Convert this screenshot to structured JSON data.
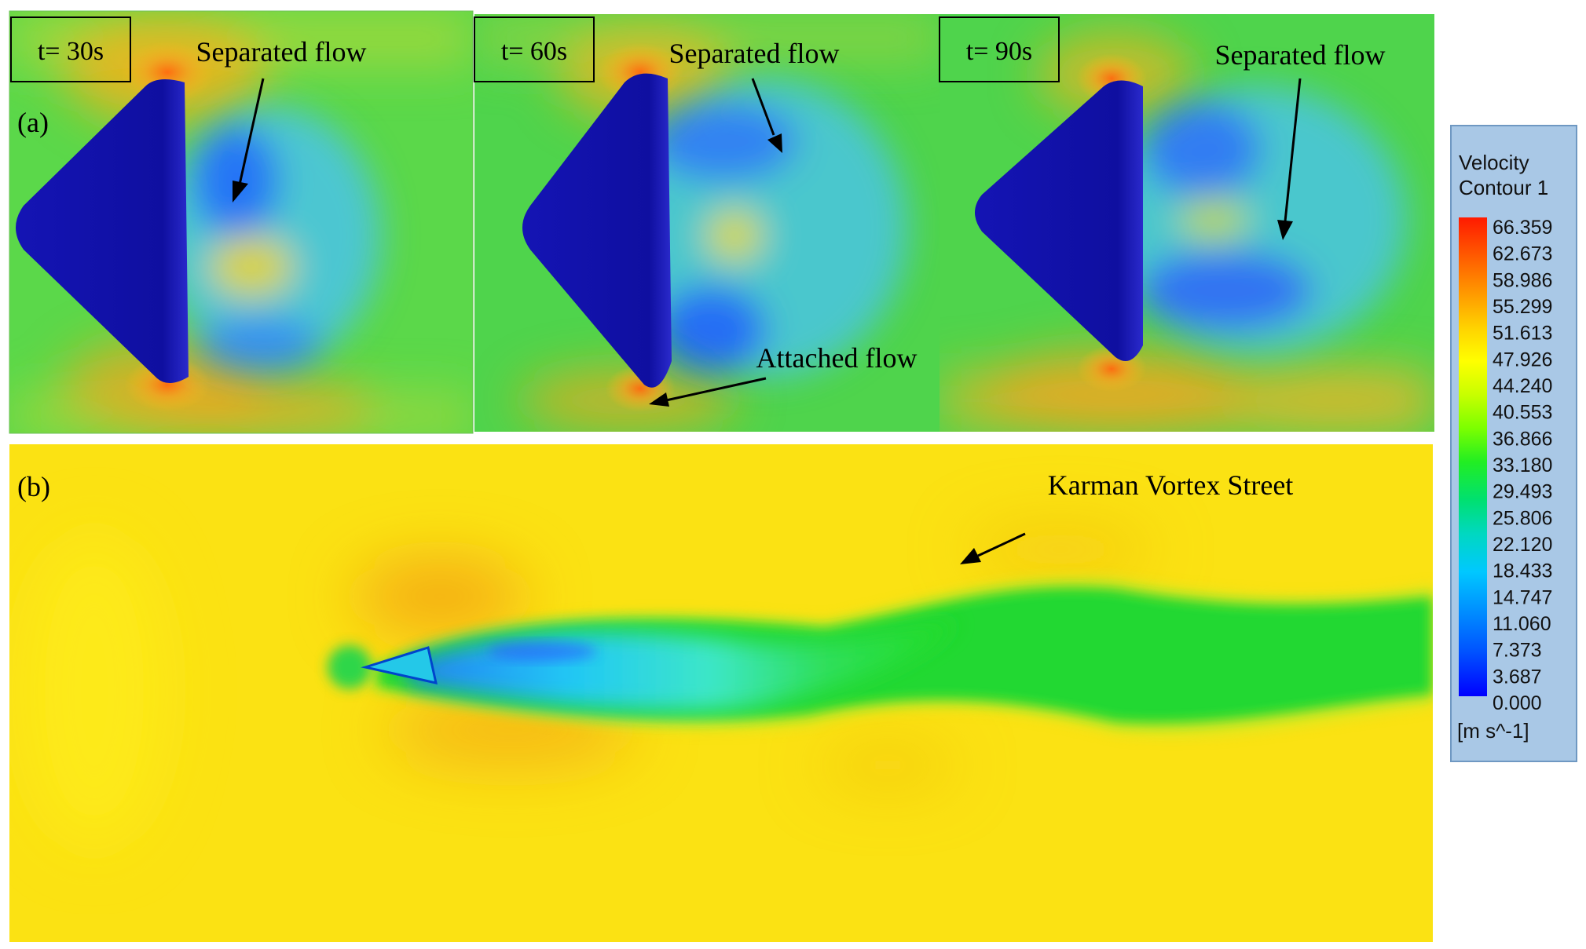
{
  "panel_a": {
    "label": "(a)",
    "frames": [
      {
        "time_label": "t= 30s",
        "annotation": "Separated flow"
      },
      {
        "time_label": "t= 60s",
        "annotation": "Separated flow",
        "annotation_2": "Attached flow"
      },
      {
        "time_label": "t= 90s",
        "annotation": "Separated flow"
      }
    ]
  },
  "panel_b": {
    "label": "(b)",
    "annotation": "Karman Vortex Street"
  },
  "legend": {
    "title_line1": "Velocity",
    "title_line2": "Contour 1",
    "ticks": [
      "66.359",
      "62.673",
      "58.986",
      "55.299",
      "51.613",
      "47.926",
      "44.240",
      "40.553",
      "36.866",
      "33.180",
      "29.493",
      "25.806",
      "22.120",
      "18.433",
      "14.747",
      "11.060",
      "7.373",
      "3.687",
      "0.000"
    ],
    "unit": "[m s^-1]",
    "colors": [
      "#ff1a00",
      "#ff5a00",
      "#ff9a00",
      "#ffd200",
      "#ffff00",
      "#c8ff00",
      "#7cff00",
      "#22ee22",
      "#00e070",
      "#00d8c0",
      "#00c8ff",
      "#0090ff",
      "#0050ff",
      "#0000ff"
    ]
  },
  "colors": {
    "body": "#1212a8",
    "green_field": "#5bd84a",
    "yellow_field": "#fbe213",
    "orange_zone": "#f09a18",
    "wake_blue": "#3f8cff",
    "wake_cyan": "#2ee0f0",
    "wake_green": "#1ed832"
  }
}
